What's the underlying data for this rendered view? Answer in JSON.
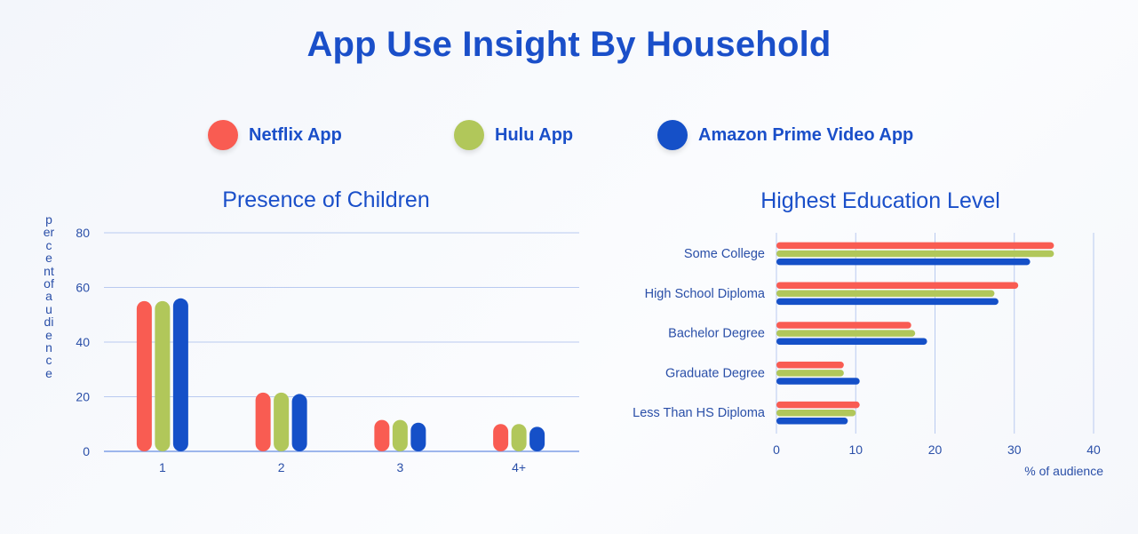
{
  "title": "App Use Insight By Household",
  "legend": [
    {
      "label": "Netflix App",
      "color": "#f95c52"
    },
    {
      "label": "Hulu App",
      "color": "#b1c75a"
    },
    {
      "label": "Amazon Prime Video App",
      "color": "#1550c8"
    }
  ],
  "chart_data": [
    {
      "type": "bar",
      "title": "Presence of Children",
      "xlabel": "",
      "ylabel": "percent of audience",
      "categories": [
        "1",
        "2",
        "3",
        "4+"
      ],
      "ylim": [
        0,
        80
      ],
      "yticks": [
        "0",
        "20",
        "40",
        "60",
        "80"
      ],
      "grid": true,
      "series": [
        {
          "name": "Netflix App",
          "values": [
            55,
            21.5,
            11.5,
            10
          ]
        },
        {
          "name": "Hulu App",
          "values": [
            55,
            21.5,
            11.5,
            10
          ]
        },
        {
          "name": "Amazon Prime Video App",
          "values": [
            56,
            21,
            10.5,
            9
          ]
        }
      ]
    },
    {
      "type": "bar",
      "orientation": "horizontal",
      "title": "Highest Education Level",
      "xlabel": "% of audience",
      "ylabel": "",
      "categories": [
        "Some College",
        "High School Diploma",
        "Bachelor Degree",
        "Graduate Degree",
        "Less Than HS Diploma"
      ],
      "xlim": [
        0,
        40
      ],
      "xticks": [
        "0",
        "10",
        "20",
        "30",
        "40"
      ],
      "grid": true,
      "series": [
        {
          "name": "Netflix App",
          "values": [
            35,
            30.5,
            17,
            8.5,
            10.5
          ]
        },
        {
          "name": "Hulu App",
          "values": [
            35,
            27.5,
            17.5,
            8.5,
            10
          ]
        },
        {
          "name": "Amazon Prime Video App",
          "values": [
            32,
            28,
            19,
            10.5,
            9
          ]
        }
      ]
    }
  ]
}
